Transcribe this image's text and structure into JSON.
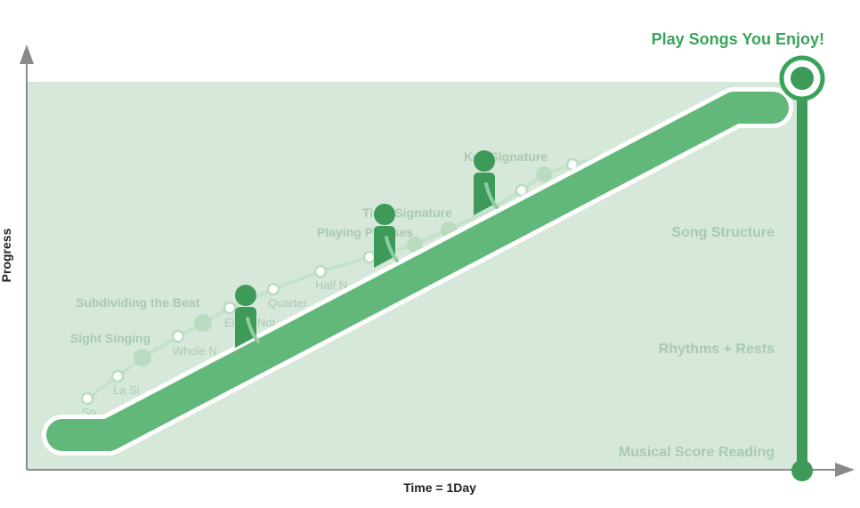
{
  "goal": {
    "label": "Play Songs You Enjoy!"
  },
  "axes": {
    "x_label": "Time = 1Day",
    "y_label": "Progress"
  },
  "zones": [
    {
      "label": "Song Structure"
    },
    {
      "label": "Rhythms + Rests"
    },
    {
      "label": "Musical Score Reading"
    }
  ],
  "background_topics": [
    {
      "label": "Subdividing the Beat"
    },
    {
      "label": "Sight Singing"
    },
    {
      "label": "Whole N"
    },
    {
      "label": "La Si"
    },
    {
      "label": "So"
    },
    {
      "label": "Ei"
    },
    {
      "label": "Not"
    },
    {
      "label": "Quarter"
    },
    {
      "label": "Half N"
    },
    {
      "label": "Playing Phrases"
    },
    {
      "label": "Time Signature"
    },
    {
      "label": "Key Signature"
    }
  ],
  "colors": {
    "panel": "#d6e8d9",
    "escalator": "#62b87a",
    "escalator_outline": "#ffffff",
    "figure": "#3d9a58",
    "goal": "#3aa35a",
    "faint_text": "#a9c9b0",
    "faint_dot": "#b9dcc1",
    "axis": "#8a8a8a"
  }
}
